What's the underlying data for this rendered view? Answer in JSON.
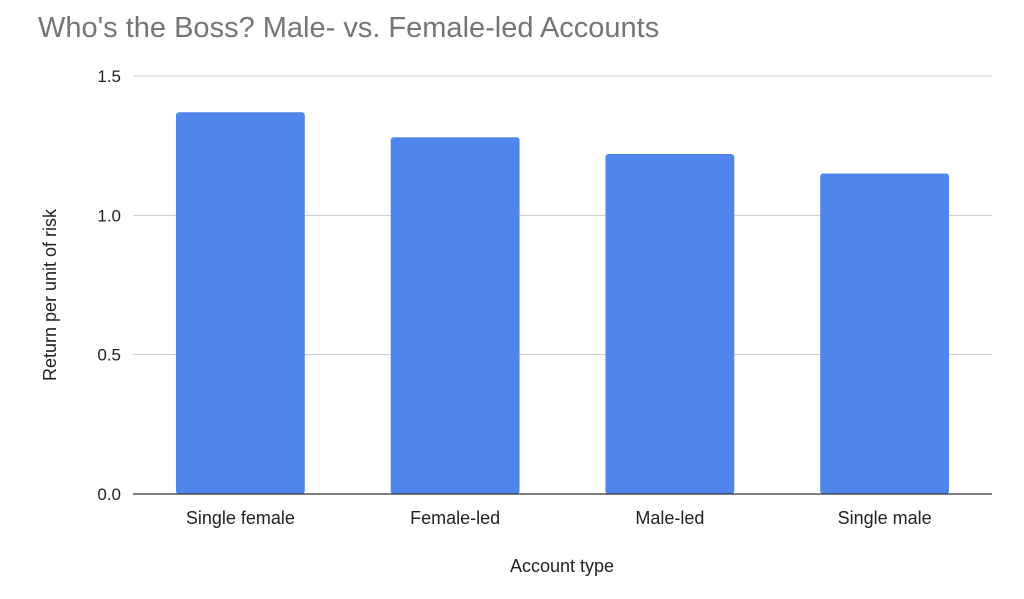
{
  "chart_data": {
    "type": "bar",
    "title": "Who's the Boss? Male- vs. Female-led Accounts",
    "xlabel": "Account type",
    "ylabel": "Return per unit of risk",
    "categories": [
      "Single female",
      "Female-led",
      "Male-led",
      "Single male"
    ],
    "values": [
      1.37,
      1.28,
      1.22,
      1.15
    ],
    "ylim": [
      0,
      1.5
    ],
    "yticks": [
      "0.0",
      "0.5",
      "1.0",
      "1.5"
    ],
    "grid": true,
    "legend": "none",
    "colors": {
      "bar": "#5085EC",
      "title": "#757575",
      "text": "#222222",
      "grid": "#CCCCCC",
      "axis": "#333333"
    }
  }
}
